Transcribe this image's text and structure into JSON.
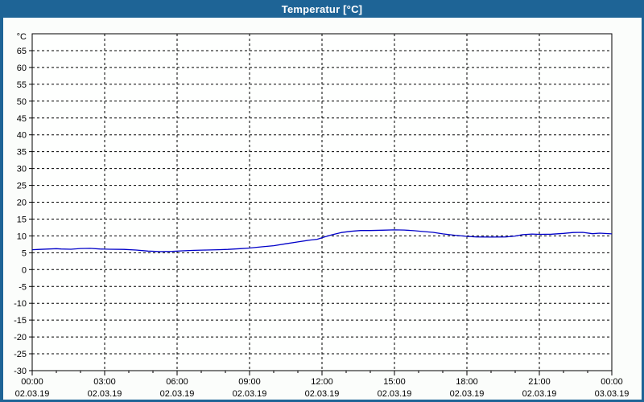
{
  "window": {
    "title": "Temperatur [°C]"
  },
  "colors": {
    "titlebar_bg": "#1e6496",
    "titlebar_text": "#ffffff",
    "window_border": "#1e6496",
    "content_bg": "#fbfdfb",
    "plot_bg": "#fefffe",
    "grid": "#000000",
    "frame": "#000000",
    "tick_text": "#000000",
    "series_line": "#0000c8"
  },
  "chart_data": {
    "type": "line",
    "title": "Temperatur [°C]",
    "xlabel": "",
    "ylabel": "°C",
    "ylim": [
      -30,
      70
    ],
    "xlim": [
      0,
      24
    ],
    "grid": true,
    "grid_style": "dashed",
    "legend": false,
    "xtick_minor_step": 1,
    "yticks": [
      {
        "v": 65,
        "label": "65"
      },
      {
        "v": 60,
        "label": "60"
      },
      {
        "v": 55,
        "label": "55"
      },
      {
        "v": 50,
        "label": "50"
      },
      {
        "v": 45,
        "label": "45"
      },
      {
        "v": 40,
        "label": "40"
      },
      {
        "v": 35,
        "label": "35"
      },
      {
        "v": 30,
        "label": "30"
      },
      {
        "v": 25,
        "label": "25"
      },
      {
        "v": 20,
        "label": "20"
      },
      {
        "v": 15,
        "label": "15"
      },
      {
        "v": 10,
        "label": "10"
      },
      {
        "v": 5,
        "label": "5"
      },
      {
        "v": 0,
        "label": "0"
      },
      {
        "v": -5,
        "label": "-5"
      },
      {
        "v": -10,
        "label": "-10"
      },
      {
        "v": -15,
        "label": "-15"
      },
      {
        "v": -20,
        "label": "-20"
      },
      {
        "v": -25,
        "label": "-25"
      },
      {
        "v": -30,
        "label": "-30"
      }
    ],
    "xticks": [
      {
        "h": 0,
        "time": "00:00",
        "date": "02.03.19"
      },
      {
        "h": 3,
        "time": "03:00",
        "date": "02.03.19"
      },
      {
        "h": 6,
        "time": "06:00",
        "date": "02.03.19"
      },
      {
        "h": 9,
        "time": "09:00",
        "date": "02.03.19"
      },
      {
        "h": 12,
        "time": "12:00",
        "date": "02.03.19"
      },
      {
        "h": 15,
        "time": "15:00",
        "date": "02.03.19"
      },
      {
        "h": 18,
        "time": "18:00",
        "date": "02.03.19"
      },
      {
        "h": 21,
        "time": "21:00",
        "date": "02.03.19"
      },
      {
        "h": 24,
        "time": "00:00",
        "date": "03.03.19"
      }
    ],
    "series": [
      {
        "name": "Temperatur",
        "color": "#0000c8",
        "points": [
          [
            0.0,
            5.9
          ],
          [
            0.3,
            6.0
          ],
          [
            0.7,
            6.1
          ],
          [
            1.0,
            6.2
          ],
          [
            1.2,
            6.1
          ],
          [
            1.6,
            6.05
          ],
          [
            2.0,
            6.25
          ],
          [
            2.4,
            6.3
          ],
          [
            2.8,
            6.1
          ],
          [
            3.2,
            6.05
          ],
          [
            3.8,
            6.0
          ],
          [
            4.3,
            5.8
          ],
          [
            4.8,
            5.5
          ],
          [
            5.3,
            5.35
          ],
          [
            5.8,
            5.4
          ],
          [
            6.2,
            5.55
          ],
          [
            6.7,
            5.7
          ],
          [
            7.2,
            5.8
          ],
          [
            7.7,
            5.9
          ],
          [
            8.1,
            6.0
          ],
          [
            8.6,
            6.2
          ],
          [
            9.0,
            6.4
          ],
          [
            9.5,
            6.75
          ],
          [
            10.0,
            7.1
          ],
          [
            10.5,
            7.65
          ],
          [
            11.0,
            8.2
          ],
          [
            11.5,
            8.75
          ],
          [
            11.8,
            9.0
          ],
          [
            12.1,
            9.7
          ],
          [
            12.4,
            10.3
          ],
          [
            12.8,
            11.0
          ],
          [
            13.2,
            11.35
          ],
          [
            13.6,
            11.6
          ],
          [
            14.0,
            11.6
          ],
          [
            14.5,
            11.7
          ],
          [
            15.0,
            11.8
          ],
          [
            15.4,
            11.75
          ],
          [
            15.8,
            11.55
          ],
          [
            16.2,
            11.3
          ],
          [
            16.6,
            11.05
          ],
          [
            17.0,
            10.6
          ],
          [
            17.5,
            10.2
          ],
          [
            18.0,
            9.85
          ],
          [
            18.4,
            9.7
          ],
          [
            19.0,
            9.65
          ],
          [
            19.6,
            9.7
          ],
          [
            20.0,
            9.95
          ],
          [
            20.3,
            10.35
          ],
          [
            20.7,
            10.55
          ],
          [
            21.0,
            10.45
          ],
          [
            21.5,
            10.5
          ],
          [
            22.0,
            10.75
          ],
          [
            22.4,
            11.0
          ],
          [
            22.8,
            11.05
          ],
          [
            23.2,
            10.65
          ],
          [
            23.5,
            10.8
          ],
          [
            24.0,
            10.6
          ]
        ]
      }
    ]
  }
}
